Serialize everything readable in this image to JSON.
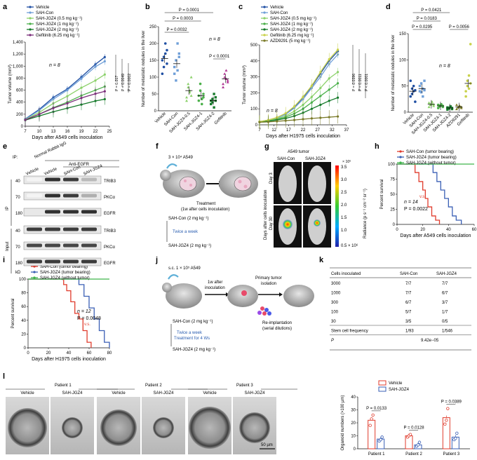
{
  "panels": {
    "a": {
      "letter": "a"
    },
    "b": {
      "letter": "b"
    },
    "c": {
      "letter": "c"
    },
    "d": {
      "letter": "d"
    },
    "e": {
      "letter": "e"
    },
    "f": {
      "letter": "f"
    },
    "g": {
      "letter": "g"
    },
    "h": {
      "letter": "h"
    },
    "i": {
      "letter": "i"
    },
    "j": {
      "letter": "j"
    },
    "k": {
      "letter": "k"
    },
    "l": {
      "letter": "l"
    }
  },
  "colors": {
    "vehicle": "#1f4fa3",
    "sah_con": "#6f9fd8",
    "jgz4_05": "#8cd16b",
    "jgz4_1": "#4bb04a",
    "jgz4_2": "#157a2a",
    "gefitinib": "#7a2c7a",
    "gefitinib_c": "#c9d24a",
    "azd": "#7b7b2a",
    "red": "#e03b2c",
    "blue": "#3a5fb5",
    "green": "#3fb34b"
  },
  "chart_data": [
    {
      "id": "a",
      "type": "line",
      "xlabel": "Days after A549 cells inoculation",
      "ylabel": "Tumor volume (mm³)",
      "xticks": [
        "7",
        "10",
        "13",
        "16",
        "19",
        "22",
        "25"
      ],
      "yticks": [
        "0",
        "200",
        "400",
        "600",
        "800",
        "1,000",
        "1,200",
        "1,400"
      ],
      "xlim": [
        7,
        25
      ],
      "ylim": [
        0,
        1400
      ],
      "x": [
        7,
        10,
        13,
        16,
        19,
        22,
        24
      ],
      "series": [
        {
          "name": "Vehicle",
          "color": "#1f4fa3",
          "values": [
            120,
            280,
            480,
            620,
            820,
            1030,
            1150
          ]
        },
        {
          "name": "SAH-Con",
          "color": "#6f9fd8",
          "values": [
            115,
            265,
            450,
            600,
            790,
            990,
            1080
          ]
        },
        {
          "name": "SAH-JGZ4 (0.5 mg kg⁻¹)",
          "color": "#8cd16b",
          "values": [
            110,
            230,
            380,
            500,
            640,
            760,
            860
          ]
        },
        {
          "name": "SAH-JGZ4 (1 mg kg⁻¹)",
          "color": "#4bb04a",
          "values": [
            105,
            200,
            310,
            400,
            510,
            600,
            660
          ]
        },
        {
          "name": "SAH-JGZ4 (2 mg kg⁻¹)",
          "color": "#157a2a",
          "values": [
            100,
            170,
            240,
            300,
            360,
            420,
            450
          ]
        },
        {
          "name": "Gefitinib (6.25 mg kg⁻¹)",
          "color": "#7a2c7a",
          "values": [
            105,
            200,
            300,
            380,
            470,
            540,
            580
          ]
        }
      ],
      "annotations": {
        "n": "n = 8",
        "p1": "P = 0.017",
        "p2": "P = 0.0049",
        "p3": "P = 0.0002"
      }
    },
    {
      "id": "b",
      "type": "scatter",
      "ylabel": "Number of metastatic nodules in the liver",
      "categories": [
        "Vehicle",
        "SAH-Con",
        "SAH-JGZ4-0.5",
        "SAH-JGZ4-1",
        "SAH-JGZ4-2",
        "Gefitinib"
      ],
      "yticks": [
        "0",
        "50",
        "100",
        "150",
        "200",
        "250"
      ],
      "ylim": [
        0,
        250
      ],
      "means": [
        155,
        140,
        60,
        45,
        30,
        95
      ],
      "points": [
        [
          150,
          130,
          170,
          180,
          110,
          160,
          200,
          140
        ],
        [
          110,
          90,
          200,
          170,
          130,
          150,
          120,
          160
        ],
        [
          40,
          80,
          60,
          100,
          30,
          70,
          55,
          45
        ],
        [
          30,
          60,
          20,
          50,
          45,
          80,
          35,
          40
        ],
        [
          20,
          35,
          10,
          40,
          30,
          25,
          50,
          30
        ],
        [
          80,
          100,
          120,
          90,
          70,
          110,
          95,
          85
        ]
      ],
      "colors": [
        "#1f4fa3",
        "#6f9fd8",
        "#8cd16b",
        "#4bb04a",
        "#157a2a",
        "#b23a95"
      ],
      "annotations": {
        "p1": "P = 0.0001",
        "p2": "P = 0.0003",
        "p3": "P = 0.0032",
        "p4": "P < 0.0001",
        "n": "n = 8"
      }
    },
    {
      "id": "c",
      "type": "line",
      "xlabel": "Days after H1975 cells inoculation",
      "ylabel": "Tumor volume (mm³)",
      "xticks": [
        "7",
        "12",
        "17",
        "22",
        "27",
        "32",
        "37"
      ],
      "yticks": [
        "0",
        "100",
        "200",
        "300",
        "400",
        "500"
      ],
      "xlim": [
        7,
        37
      ],
      "ylim": [
        0,
        500
      ],
      "x": [
        7,
        10,
        13,
        16,
        19,
        22,
        25,
        28,
        31,
        34
      ],
      "series": [
        {
          "name": "Vehicle",
          "color": "#1f4fa3",
          "values": [
            20,
            30,
            45,
            70,
            110,
            170,
            240,
            320,
            400,
            460
          ]
        },
        {
          "name": "SAH-Con",
          "color": "#6f9fd8",
          "values": [
            20,
            28,
            42,
            65,
            105,
            160,
            230,
            300,
            380,
            440
          ]
        },
        {
          "name": "SAH-JGZ4 (0.5 mg kg⁻¹)",
          "color": "#8cd16b",
          "values": [
            20,
            26,
            38,
            55,
            85,
            125,
            175,
            230,
            290,
            330
          ]
        },
        {
          "name": "SAH-JGZ4 (1 mg kg⁻¹)",
          "color": "#4bb04a",
          "values": [
            18,
            24,
            34,
            48,
            70,
            100,
            140,
            180,
            220,
            260
          ]
        },
        {
          "name": "SAH-JGZ4 (2 mg kg⁻¹)",
          "color": "#157a2a",
          "values": [
            18,
            22,
            30,
            40,
            55,
            75,
            100,
            125,
            150,
            170
          ]
        },
        {
          "name": "Gefitinib (6.25 mg kg⁻¹)",
          "color": "#c9d24a",
          "values": [
            20,
            30,
            46,
            72,
            115,
            175,
            245,
            330,
            410,
            470
          ]
        },
        {
          "name": "AZD9291 (5 mg kg⁻¹)",
          "color": "#7b7b2a",
          "values": [
            16,
            18,
            22,
            26,
            30,
            35,
            40,
            44,
            48,
            52
          ]
        }
      ],
      "annotations": {
        "n": "n = 8",
        "p1": "P = 0.0396",
        "p2": "P = 0.0011",
        "p3": "P < 0.0001"
      }
    },
    {
      "id": "d",
      "type": "scatter",
      "ylabel": "Number of metastatic nodules in the liver",
      "categories": [
        "Vehicle",
        "SAH-Con",
        "SAH-JGZ4-0.5",
        "SAH-JGZ4-1",
        "SAH-JGZ4-2",
        "AZD9291",
        "Gefitinib"
      ],
      "yticks": [
        "0",
        "50",
        "100",
        "150"
      ],
      "ylim": [
        0,
        150
      ],
      "means": [
        40,
        45,
        15,
        12,
        8,
        10,
        55
      ],
      "points": [
        [
          30,
          45,
          50,
          20,
          60,
          35,
          40,
          42
        ],
        [
          40,
          55,
          30,
          60,
          50,
          38,
          45,
          42
        ],
        [
          10,
          15,
          20,
          12,
          18,
          14,
          16,
          15
        ],
        [
          8,
          12,
          15,
          10,
          14,
          11,
          13,
          12
        ],
        [
          5,
          8,
          10,
          6,
          9,
          7,
          11,
          8
        ],
        [
          6,
          10,
          12,
          8,
          14,
          9,
          11,
          10
        ],
        [
          40,
          60,
          70,
          130,
          30,
          50,
          45,
          55
        ]
      ],
      "colors": [
        "#1f4fa3",
        "#6f9fd8",
        "#8cd16b",
        "#4bb04a",
        "#157a2a",
        "#7b7b2a",
        "#c9d24a"
      ],
      "annotations": {
        "p1": "P = 0.0421",
        "p2": "P = 0.0183",
        "p3": "P = 0.0295",
        "p4": "P = 0.0056",
        "n": "n = 8"
      }
    },
    {
      "id": "h",
      "type": "line",
      "xlabel": "Days after A549 cells inoculation",
      "ylabel": "Percent survival",
      "xticks": [
        "0",
        "20",
        "40",
        "60"
      ],
      "yticks": [
        "0",
        "25",
        "50",
        "75",
        "100"
      ],
      "xlim": [
        0,
        60
      ],
      "ylim": [
        0,
        100
      ],
      "series": [
        {
          "name": "SAH-Con (tumor bearing)",
          "color": "#e03b2c",
          "x": [
            0,
            10,
            14,
            17,
            20,
            22,
            24,
            27,
            30,
            33
          ],
          "values": [
            100,
            100,
            86,
            71,
            57,
            43,
            29,
            14,
            7,
            0
          ]
        },
        {
          "name": "SAH-JGZ4 (tumor bearing)",
          "color": "#3a5fb5",
          "x": [
            0,
            25,
            28,
            31,
            34,
            37,
            40,
            43,
            46,
            50
          ],
          "values": [
            100,
            100,
            86,
            71,
            57,
            43,
            29,
            14,
            7,
            0
          ]
        },
        {
          "name": "SAH-JGZ4 (without tumor)",
          "color": "#3fb34b",
          "x": [
            0,
            60
          ],
          "values": [
            100,
            100
          ]
        }
      ],
      "annotations": {
        "n": "n = 14",
        "p": "P = 0.0022",
        "vs": "v.s."
      }
    },
    {
      "id": "i",
      "type": "line",
      "xlabel": "Days after H1975 cells inoculation",
      "ylabel": "Percent survival",
      "xticks": [
        "0",
        "20",
        "40",
        "60",
        "80"
      ],
      "yticks": [
        "0",
        "20",
        "40",
        "60",
        "80",
        "100"
      ],
      "xlim": [
        0,
        80
      ],
      "ylim": [
        0,
        100
      ],
      "series": [
        {
          "name": "SAH-Con (tumor bearing)",
          "color": "#e03b2c",
          "x": [
            0,
            30,
            35,
            38,
            42,
            46,
            50,
            54,
            58,
            62
          ],
          "values": [
            100,
            100,
            92,
            83,
            67,
            50,
            42,
            25,
            8,
            0
          ]
        },
        {
          "name": "SAH-JGZ4 (tumor bearing)",
          "color": "#3a5fb5",
          "x": [
            0,
            45,
            50,
            55,
            60,
            65,
            70,
            75,
            80
          ],
          "values": [
            100,
            100,
            92,
            75,
            58,
            42,
            25,
            8,
            0
          ]
        },
        {
          "name": "SAH-JGZ4 (without tumor)",
          "color": "#3fb34b",
          "x": [
            0,
            80
          ],
          "values": [
            100,
            100
          ]
        }
      ],
      "annotations": {
        "n": "n = 12",
        "p": "P = 0.0048",
        "vs": "v.s."
      }
    },
    {
      "id": "l",
      "type": "bar",
      "ylabel": "Organoid numbers (>100 µm)",
      "categories": [
        "Patient 1",
        "Patient 2",
        "Patient 3"
      ],
      "yticks": [
        "0",
        "10",
        "20",
        "30",
        "40"
      ],
      "ylim": [
        0,
        40
      ],
      "series": [
        {
          "name": "Vehicle",
          "color": "#e03b2c",
          "values": [
            22,
            10,
            24
          ]
        },
        {
          "name": "SAH-JGZ4",
          "color": "#3a5fb5",
          "values": [
            7.5,
            3,
            9
          ]
        }
      ],
      "points": [
        [
          [
            18,
            23,
            26
          ],
          [
            6,
            7,
            9
          ]
        ],
        [
          [
            9,
            10,
            11
          ],
          [
            2,
            3,
            5
          ]
        ],
        [
          [
            19,
            22,
            31
          ],
          [
            7,
            8,
            12
          ]
        ]
      ],
      "annotations": {
        "p1": "P = 0.0133",
        "p2": "P = 0.0128",
        "p3": "P = 0.0389"
      }
    }
  ],
  "e": {
    "ip_label": "IP:",
    "normal": "Normal Rabbit IgG",
    "anti": "Anti-EGFR",
    "lanes": [
      "Vehicle",
      "Vehicle",
      "SAH-Con",
      "SAH-JGZ4"
    ],
    "ip_side": "IP",
    "input_side": "Input",
    "mw": [
      "40",
      "70",
      "180",
      "40",
      "70",
      "180"
    ],
    "kd": "kD",
    "bands": [
      "TRIB3",
      "PKCα",
      "EGFR",
      "TRIB3",
      "PKCα",
      "EGFR"
    ]
  },
  "f": {
    "cells": "3 × 10⁴ A549",
    "treatment": "Treatment",
    "treatment2": "(1w after cells inoculation)",
    "con": "SAH-Con (2 mg kg⁻¹)",
    "twice": "Twice a week",
    "jgz": "SAH-JGZ4 (2 mg kg⁻¹)"
  },
  "g": {
    "title": "A549 tumor",
    "col1": "SAH-Con",
    "col2": "SAH-JGZ4",
    "row1": "Day 3",
    "row2": "Day 30",
    "side": "Days after cells inoculation",
    "scale_top": "× 10⁶",
    "scale": [
      "3.5",
      "3.0",
      "2.5",
      "2.0",
      "1.5",
      "1.0",
      "0.5 × 10⁶"
    ],
    "radiance": "Radiance (p s⁻¹ cm⁻² sr⁻¹)"
  },
  "j": {
    "sc": "s.c. 1 × 10⁵  A549",
    "after": "1w after",
    "inoc": "inoculation",
    "primary": "Primary tumor",
    "isolation": "isolation",
    "con": "SAH-Con (2 mg kg⁻¹)",
    "twice": "Twice a week",
    "treat4": "Treatment for 4 Ws",
    "jgz": "SAH-JGZ4 (2 mg kg⁻¹)",
    "reimpl": "Re-implantation",
    "serial": "(serial dilutions)"
  },
  "k": {
    "headers": [
      "Cells inoculated",
      "SAH-Con",
      "SAH-JGZ4"
    ],
    "rows": [
      [
        "3000",
        "7/7",
        "7/7"
      ],
      [
        "1000",
        "7/7",
        "6/7"
      ],
      [
        "300",
        "6/7",
        "3/7"
      ],
      [
        "100",
        "5/7",
        "1/7"
      ],
      [
        "30",
        "3/5",
        "0/5"
      ],
      [
        "Stem cell frequency",
        "1/93",
        "1/546"
      ],
      [
        "P",
        "9.42e−05",
        ""
      ]
    ]
  },
  "l_images": {
    "patients": [
      "Patient 1",
      "Patient 2",
      "Patient 3"
    ],
    "vehicle": "Vehicle",
    "jgz": "SAH-JGZ4",
    "scale": "50 µm",
    "legend_vehicle": "Vehicle",
    "legend_jgz": "SAH-JGZ4"
  }
}
